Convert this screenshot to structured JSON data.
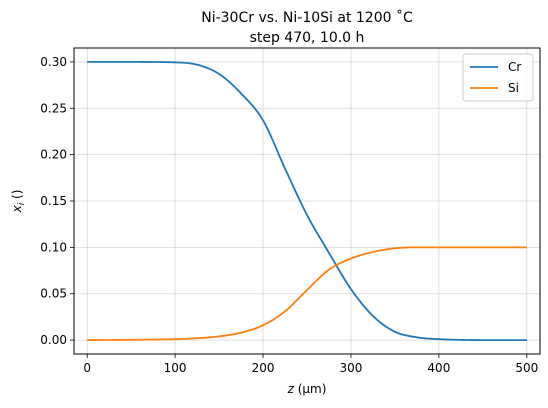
{
  "chart_data": {
    "type": "line",
    "title_line1": "Ni-30Cr vs. Ni-10Si at 1200 ˚C",
    "title_line2": "step 470, 10.0 h",
    "xlabel_var": "z",
    "xlabel_unit": " (μm)",
    "ylabel_var": "x",
    "ylabel_sub": "i",
    "ylabel_unit": " ()",
    "xlim": [
      -15,
      515
    ],
    "ylim": [
      -0.015,
      0.315
    ],
    "xticks": [
      0,
      100,
      200,
      300,
      400,
      500
    ],
    "yticks": [
      0.0,
      0.05,
      0.1,
      0.15,
      0.2,
      0.25,
      0.3
    ],
    "ytick_labels": [
      "0.00",
      "0.05",
      "0.10",
      "0.15",
      "0.20",
      "0.25",
      "0.30"
    ],
    "grid": true,
    "legend_position": "top-right",
    "x": [
      0,
      50,
      100,
      125,
      150,
      175,
      200,
      225,
      250,
      275,
      300,
      325,
      350,
      375,
      400,
      450,
      500
    ],
    "series": [
      {
        "name": "Cr",
        "color": "#1f77b4",
        "values": [
          0.3,
          0.3,
          0.2995,
          0.297,
          0.287,
          0.266,
          0.237,
          0.185,
          0.135,
          0.094,
          0.055,
          0.026,
          0.009,
          0.003,
          0.001,
          0.0,
          0.0
        ]
      },
      {
        "name": "Si",
        "color": "#ff7f0e",
        "values": [
          0.0,
          0.0003,
          0.001,
          0.002,
          0.004,
          0.008,
          0.016,
          0.031,
          0.054,
          0.076,
          0.088,
          0.095,
          0.099,
          0.1,
          0.1,
          0.1,
          0.1
        ]
      }
    ]
  }
}
